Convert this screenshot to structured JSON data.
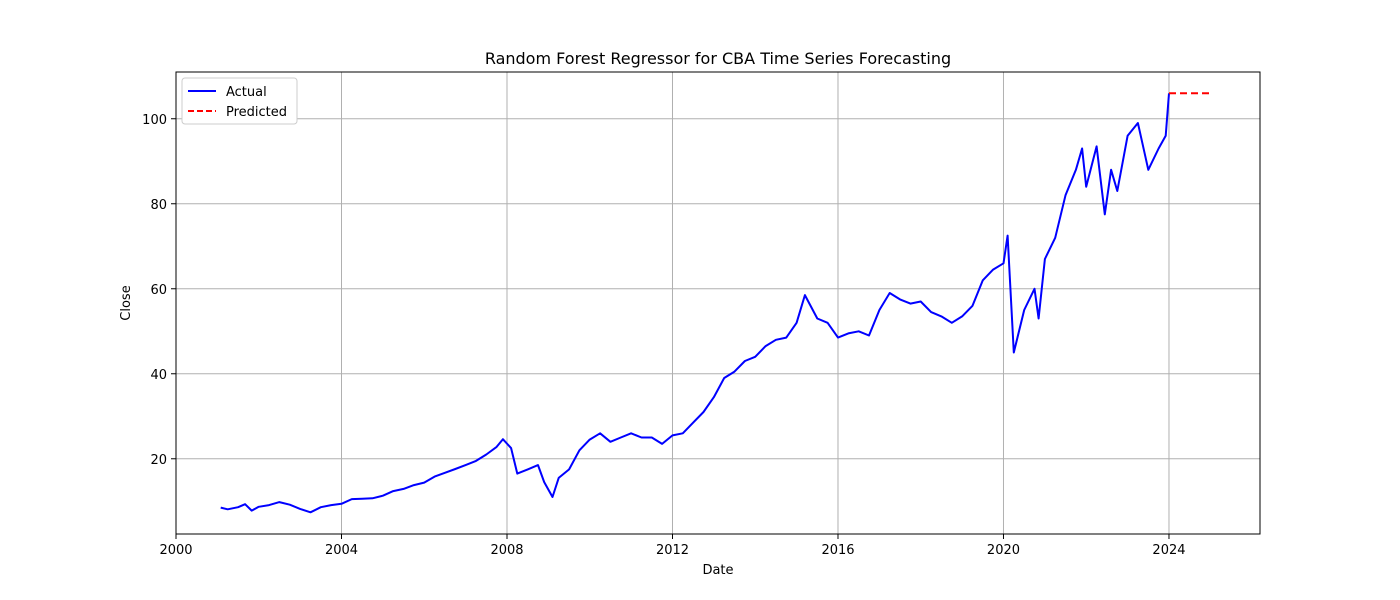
{
  "chart_data": {
    "type": "line",
    "title": "Random Forest Regressor for CBA Time Series Forecasting",
    "xlabel": "Date",
    "ylabel": "Close",
    "xlim": [
      2000.0,
      2026.2
    ],
    "ylim": [
      2.3,
      111.0
    ],
    "x_ticks": [
      2000,
      2004,
      2008,
      2012,
      2016,
      2020,
      2024
    ],
    "y_ticks": [
      20,
      40,
      60,
      80,
      100
    ],
    "grid": true,
    "legend_position": "top-left",
    "series": [
      {
        "name": "Actual",
        "color": "#0000ff",
        "style": "solid",
        "points": [
          [
            2001.08,
            8.5
          ],
          [
            2001.25,
            8.1
          ],
          [
            2001.5,
            8.6
          ],
          [
            2001.67,
            9.3
          ],
          [
            2001.83,
            7.8
          ],
          [
            2002.0,
            8.7
          ],
          [
            2002.25,
            9.1
          ],
          [
            2002.5,
            9.8
          ],
          [
            2002.75,
            9.2
          ],
          [
            2003.0,
            8.2
          ],
          [
            2003.25,
            7.4
          ],
          [
            2003.5,
            8.6
          ],
          [
            2003.75,
            9.1
          ],
          [
            2004.0,
            9.4
          ],
          [
            2004.25,
            10.5
          ],
          [
            2004.5,
            10.6
          ],
          [
            2004.75,
            10.7
          ],
          [
            2005.0,
            11.3
          ],
          [
            2005.25,
            12.4
          ],
          [
            2005.5,
            12.9
          ],
          [
            2005.75,
            13.8
          ],
          [
            2006.0,
            14.4
          ],
          [
            2006.25,
            15.8
          ],
          [
            2006.5,
            16.7
          ],
          [
            2006.75,
            17.6
          ],
          [
            2007.0,
            18.5
          ],
          [
            2007.25,
            19.5
          ],
          [
            2007.5,
            21.0
          ],
          [
            2007.75,
            22.8
          ],
          [
            2007.9,
            24.6
          ],
          [
            2008.1,
            22.5
          ],
          [
            2008.25,
            16.5
          ],
          [
            2008.5,
            17.5
          ],
          [
            2008.75,
            18.5
          ],
          [
            2008.9,
            14.5
          ],
          [
            2009.1,
            11.0
          ],
          [
            2009.25,
            15.5
          ],
          [
            2009.5,
            17.5
          ],
          [
            2009.75,
            22.0
          ],
          [
            2010.0,
            24.5
          ],
          [
            2010.25,
            26.0
          ],
          [
            2010.5,
            24.0
          ],
          [
            2010.75,
            25.0
          ],
          [
            2011.0,
            26.0
          ],
          [
            2011.25,
            25.0
          ],
          [
            2011.5,
            25.0
          ],
          [
            2011.75,
            23.5
          ],
          [
            2012.0,
            25.5
          ],
          [
            2012.25,
            26.0
          ],
          [
            2012.5,
            28.5
          ],
          [
            2012.75,
            31.0
          ],
          [
            2013.0,
            34.5
          ],
          [
            2013.25,
            39.0
          ],
          [
            2013.5,
            40.5
          ],
          [
            2013.75,
            43.0
          ],
          [
            2014.0,
            44.0
          ],
          [
            2014.25,
            46.5
          ],
          [
            2014.5,
            48.0
          ],
          [
            2014.75,
            48.5
          ],
          [
            2015.0,
            52.0
          ],
          [
            2015.2,
            58.5
          ],
          [
            2015.5,
            53.0
          ],
          [
            2015.75,
            52.0
          ],
          [
            2016.0,
            48.5
          ],
          [
            2016.25,
            49.5
          ],
          [
            2016.5,
            50.0
          ],
          [
            2016.75,
            49.0
          ],
          [
            2017.0,
            55.0
          ],
          [
            2017.25,
            59.0
          ],
          [
            2017.5,
            57.5
          ],
          [
            2017.75,
            56.5
          ],
          [
            2018.0,
            57.0
          ],
          [
            2018.25,
            54.5
          ],
          [
            2018.5,
            53.5
          ],
          [
            2018.75,
            52.0
          ],
          [
            2019.0,
            53.5
          ],
          [
            2019.25,
            56.0
          ],
          [
            2019.5,
            62.0
          ],
          [
            2019.75,
            64.5
          ],
          [
            2020.0,
            66.0
          ],
          [
            2020.1,
            72.5
          ],
          [
            2020.25,
            45.0
          ],
          [
            2020.5,
            55.0
          ],
          [
            2020.75,
            60.0
          ],
          [
            2020.85,
            53.0
          ],
          [
            2021.0,
            67.0
          ],
          [
            2021.25,
            72.0
          ],
          [
            2021.5,
            82.0
          ],
          [
            2021.75,
            88.0
          ],
          [
            2021.9,
            93.0
          ],
          [
            2022.0,
            84.0
          ],
          [
            2022.25,
            93.5
          ],
          [
            2022.45,
            77.5
          ],
          [
            2022.6,
            88.0
          ],
          [
            2022.75,
            83.0
          ],
          [
            2023.0,
            96.0
          ],
          [
            2023.25,
            99.0
          ],
          [
            2023.5,
            88.0
          ],
          [
            2023.75,
            93.0
          ],
          [
            2023.92,
            96.0
          ],
          [
            2024.0,
            106.0
          ]
        ]
      },
      {
        "name": "Predicted",
        "color": "#ff0000",
        "style": "dashed",
        "points": [
          [
            2024.0,
            106.0
          ],
          [
            2025.0,
            106.0
          ]
        ]
      }
    ]
  }
}
